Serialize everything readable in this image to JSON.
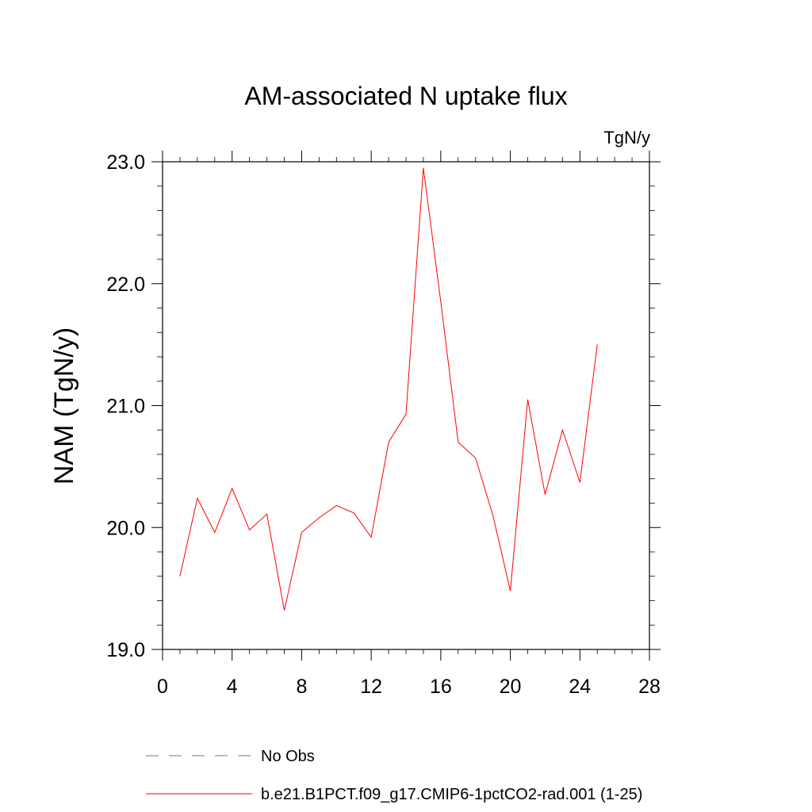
{
  "chart_data": {
    "type": "line",
    "title": "AM-associated N uptake flux",
    "units_label": "TgN/y",
    "ylabel": "NAM  (TgN/y)",
    "xlabel": "",
    "xlim": [
      0,
      28
    ],
    "ylim": [
      19.0,
      23.0
    ],
    "x_ticks": [
      0,
      4,
      8,
      12,
      16,
      20,
      24,
      28
    ],
    "y_ticks": [
      19.0,
      20.0,
      21.0,
      22.0,
      23.0
    ],
    "y_tick_labels": [
      "19.0",
      "20.0",
      "21.0",
      "22.0",
      "23.0"
    ],
    "grid": false,
    "legend_placement": "bottom",
    "legend": [
      {
        "label": "No Obs",
        "style": "dashed",
        "color": "#6f6fbf"
      },
      {
        "label": "b.e21.B1PCT.f09_g17.CMIP6-1pctCO2-rad.001 (1-25)",
        "style": "solid",
        "color": "#ff0000"
      }
    ],
    "series": [
      {
        "name": "b.e21.B1PCT.f09_g17.CMIP6-1pctCO2-rad.001 (1-25)",
        "color": "#ff0000",
        "x": [
          1,
          2,
          3,
          4,
          5,
          6,
          7,
          8,
          9,
          10,
          11,
          12,
          13,
          14,
          15,
          16,
          17,
          18,
          19,
          20,
          21,
          22,
          23,
          24,
          25
        ],
        "values": [
          19.6,
          20.24,
          19.96,
          20.32,
          19.98,
          20.11,
          19.32,
          19.96,
          20.08,
          20.18,
          20.12,
          19.92,
          20.7,
          20.93,
          22.95,
          21.85,
          20.7,
          20.57,
          20.1,
          19.48,
          21.05,
          20.27,
          20.8,
          20.37,
          21.5
        ]
      }
    ]
  }
}
